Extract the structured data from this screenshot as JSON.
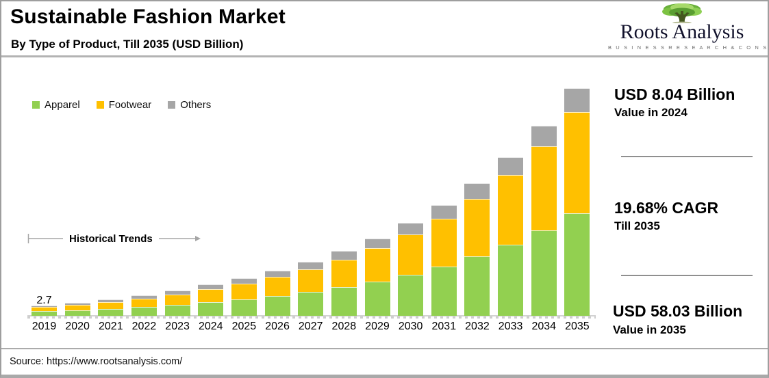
{
  "header": {
    "title": "Sustainable Fashion Market",
    "subtitle": "By Type of Product, Till 2035 (USD Billion)"
  },
  "logo": {
    "name": "Roots Analysis",
    "tagline": "B U S I N E S S   R E S E A R C H   &   C O N S U L T I N G",
    "icon": "tree-icon"
  },
  "chart_data": {
    "type": "bar",
    "stacked": true,
    "title": "Sustainable Fashion Market",
    "subtitle": "By Type of Product, Till 2035 (USD Billion)",
    "unit": "USD Billion",
    "categories": [
      "2019",
      "2020",
      "2021",
      "2022",
      "2023",
      "2024",
      "2025",
      "2026",
      "2027",
      "2028",
      "2029",
      "2030",
      "2031",
      "2032",
      "2033",
      "2034",
      "2035"
    ],
    "series": [
      {
        "name": "Apparel",
        "color": "#92D050",
        "values": [
          1.16,
          1.45,
          1.81,
          2.25,
          2.81,
          3.51,
          4.21,
          5.05,
          6.06,
          7.27,
          8.72,
          10.47,
          12.56,
          15.08,
          18.09,
          21.72,
          26.07
        ]
      },
      {
        "name": "Footwear",
        "color": "#FFC000",
        "values": [
          1.08,
          1.35,
          1.7,
          2.12,
          2.66,
          3.33,
          4.01,
          4.83,
          5.82,
          7.01,
          8.45,
          10.18,
          12.26,
          14.76,
          17.78,
          21.42,
          25.81
        ]
      },
      {
        "name": "Others",
        "color": "#A6A6A6",
        "values": [
          0.46,
          0.56,
          0.68,
          0.82,
          0.99,
          1.2,
          1.4,
          1.63,
          1.9,
          2.21,
          2.57,
          2.97,
          3.45,
          3.99,
          4.62,
          5.33,
          6.15
        ]
      }
    ],
    "totals": [
      2.7,
      3.36,
      4.18,
      5.2,
      6.46,
      8.04,
      9.62,
      11.51,
      13.78,
      16.49,
      19.74,
      23.62,
      28.27,
      33.83,
      40.49,
      48.47,
      58.03
    ],
    "data_labels": [
      {
        "category": "2019",
        "text": "2.7"
      }
    ],
    "annotation": {
      "text": "Historical Trends",
      "style": "left-tick-line and right arrow"
    },
    "legend_position": "top-left",
    "y_axis_visible": false,
    "ylim": [
      0,
      60
    ],
    "baseline_color": "#D2D2D2"
  },
  "stats": [
    {
      "value": "USD 8.04 Billion",
      "label": "Value in 2024"
    },
    {
      "value": "19.68% CAGR",
      "label": "Till 2035"
    },
    {
      "value": "USD 58.03 Billion",
      "label": "Value in 2035"
    }
  ],
  "footer": {
    "source": "Source: https://www.rootsanalysis.com/"
  },
  "colors": {
    "apparel": "#92D050",
    "footwear": "#FFC000",
    "others": "#A6A6A6",
    "divider": "#8F8F8F",
    "annotation_line": "#A6A6A6"
  }
}
